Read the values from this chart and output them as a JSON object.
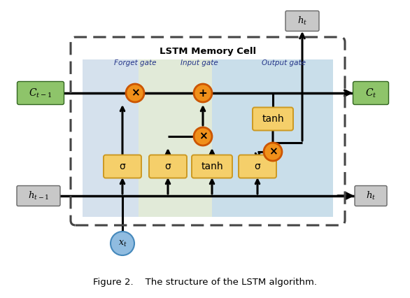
{
  "bg_color": "#ffffff",
  "forget_band_color": "#c8d8e8",
  "input_band_color": "#d8e4cc",
  "output_band_color": "#b8d4e4",
  "green_box_color": "#8ec46a",
  "gray_box_color": "#c8c8c8",
  "orange_fill": "#f0901a",
  "orange_edge": "#cc5500",
  "yellow_fill": "#f5cf6a",
  "yellow_edge": "#cc9922",
  "blue_fill": "#90bce0",
  "blue_edge": "#4488bb",
  "dash_color": "#444444",
  "arrow_color": "#111111",
  "gate_label_color": "#223388",
  "cell_title": "LSTM Memory Cell",
  "caption": "Figure 2.    The structure of the LSTM algorithm.",
  "Ct1_label": "$C_{t-1}$",
  "Ct_label": "$C_t$",
  "ht1_label": "$h_{t-1}$",
  "ht_label": "$h_t$",
  "ht_top_label": "$h_t$",
  "xt_label": "$x_t$",
  "forget_gate_label": "Forget gate",
  "input_gate_label": "Input gate",
  "output_gate_label": "Output gate",
  "sig_label": "σ",
  "tanh_label": "tanh"
}
